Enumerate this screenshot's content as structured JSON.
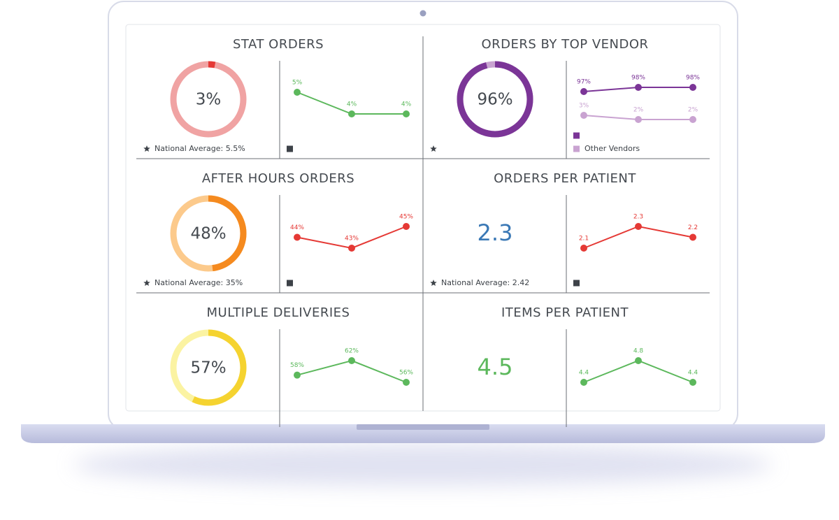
{
  "panels": [
    {
      "title": "STAT ORDERS",
      "kpi": {
        "value": 3,
        "label": "3%",
        "color": "#454a50",
        "ring": "#f0a3a3",
        "arc": "#e53935"
      },
      "star": true,
      "note": "National Average: 5.5%",
      "sparkline": {
        "series": [
          {
            "color": "#5cb85c",
            "swatch": "#3d4248",
            "values": [
              5,
              4,
              4
            ],
            "value_labels": [
              "5%",
              "4%",
              "4%"
            ]
          }
        ]
      }
    },
    {
      "title": "ORDERS BY TOP VENDOR",
      "kpi": {
        "value": 96,
        "label": "96%",
        "color": "#454a50",
        "ring": "#c9a3d1",
        "arc": "#7b3597"
      },
      "star": true,
      "sparkline": {
        "series": [
          {
            "color": "#7b3597",
            "swatch": "#7b3597",
            "values": [
              97,
              98,
              98
            ],
            "value_labels": [
              "97%",
              "98%",
              "98%"
            ]
          },
          {
            "name": "Other Vendors",
            "color": "#c9a3d1",
            "swatch": "#c9a3d1",
            "values": [
              3,
              2,
              2
            ],
            "value_labels": [
              "3%",
              "2%",
              "2%"
            ]
          }
        ]
      }
    },
    {
      "title": "AFTER HOURS ORDERS",
      "kpi": {
        "value": 48,
        "label": "48%",
        "color": "#454a50",
        "ring": "#fcca8c",
        "arc": "#f58a1f"
      },
      "star": true,
      "note": "National Average: 35%",
      "sparkline": {
        "series": [
          {
            "color": "#e53935",
            "swatch": "#3d4248",
            "values": [
              44,
              43,
              45
            ],
            "value_labels": [
              "44%",
              "43%",
              "45%"
            ]
          }
        ]
      }
    },
    {
      "title": "ORDERS PER PATIENT",
      "kpi": {
        "value": 2.3,
        "color": "#3a78b5"
      },
      "star": true,
      "note": "National Average: 2.42",
      "sparkline": {
        "series": [
          {
            "color": "#e53935",
            "swatch": "#3d4248",
            "values": [
              2.1,
              2.3,
              2.2
            ]
          }
        ]
      }
    },
    {
      "title": "MULTIPLE DELIVERIES",
      "kpi": {
        "value": 57,
        "label": "57%",
        "color": "#454a50",
        "ring": "#fbf3a2",
        "arc": "#f5d330"
      },
      "star": false,
      "sparkline": {
        "series": [
          {
            "color": "#5cb85c",
            "values": [
              58,
              62,
              56
            ],
            "value_labels": [
              "58%",
              "62%",
              "56%"
            ]
          }
        ]
      }
    },
    {
      "title": "ITEMS PER PATIENT",
      "kpi": {
        "value": 4.5,
        "color": "#5cb85c"
      },
      "star": false,
      "sparkline": {
        "series": [
          {
            "color": "#5cb85c",
            "values": [
              4.4,
              4.8,
              4.4
            ]
          }
        ]
      }
    }
  ]
}
